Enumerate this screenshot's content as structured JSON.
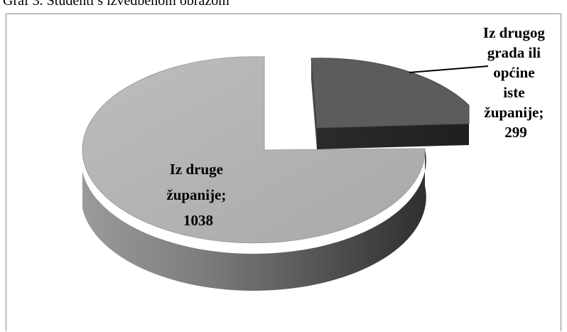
{
  "caption": "Graf 3. Studenti s izvedbenom obrazom",
  "chart_data": {
    "type": "pie",
    "style": "3d-exploded",
    "slices": [
      {
        "label_lines": [
          "Iz druge",
          "županije;",
          "1038"
        ],
        "category": "Iz druge županije",
        "value": 1038,
        "color": "#b3b3b3"
      },
      {
        "label_lines": [
          "Iz drugog",
          "grada ili",
          "općine",
          "iste",
          "županije;",
          "299"
        ],
        "category": "Iz drugog grada ili općine iste županije",
        "value": 299,
        "color": "#595959"
      }
    ]
  }
}
